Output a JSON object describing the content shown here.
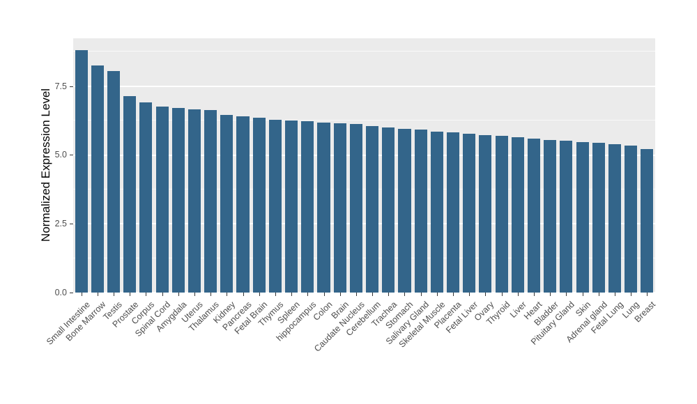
{
  "chart_data": {
    "type": "bar",
    "title": "",
    "xlabel": "",
    "ylabel": "Normalized Expression Level",
    "ylim": [
      0,
      9.24
    ],
    "yticks": [
      0,
      2.5,
      5,
      7.5
    ],
    "ytick_labels": [
      "0.0",
      "2.5",
      "5.0",
      "7.5"
    ],
    "minor_gridlines": [
      1.25,
      3.75,
      6.25,
      8.75
    ],
    "grid": "major white lines with faint minor lines on gray panel",
    "legend_position": "none",
    "bar_color": "#33658A",
    "panel_background": "#EBEBEB",
    "axis_text_color": "#4D4D4D",
    "categories": [
      "Small Intestine",
      "Bone Marrow",
      "Testis",
      "Prostate",
      "Corpus",
      "Spinal Cord",
      "Amygdala",
      "Uterus",
      "Thalamus",
      "Kidney",
      "Pancreas",
      "Fetal Brain",
      "Thymus",
      "Spleen",
      "hippocampus",
      "Colon",
      "Brain",
      "Caudate Nucleus",
      "Cerebellum",
      "Trachea",
      "Stomach",
      "Salivary Gland",
      "Skeletal Muscle",
      "Placenta",
      "Fetal Liver",
      "Ovary",
      "Thyroid",
      "Liver",
      "Heart",
      "Bladder",
      "Pituitary Gland",
      "Skin",
      "Adrenal gland",
      "Fetal Lung",
      "Lung",
      "Breast"
    ],
    "values": [
      8.8,
      8.25,
      8.05,
      7.15,
      6.9,
      6.75,
      6.7,
      6.65,
      6.63,
      6.45,
      6.4,
      6.35,
      6.28,
      6.25,
      6.22,
      6.18,
      6.15,
      6.12,
      6.05,
      6.0,
      5.95,
      5.92,
      5.85,
      5.82,
      5.78,
      5.72,
      5.7,
      5.65,
      5.6,
      5.55,
      5.52,
      5.48,
      5.45,
      5.4,
      5.35,
      5.22
    ]
  }
}
